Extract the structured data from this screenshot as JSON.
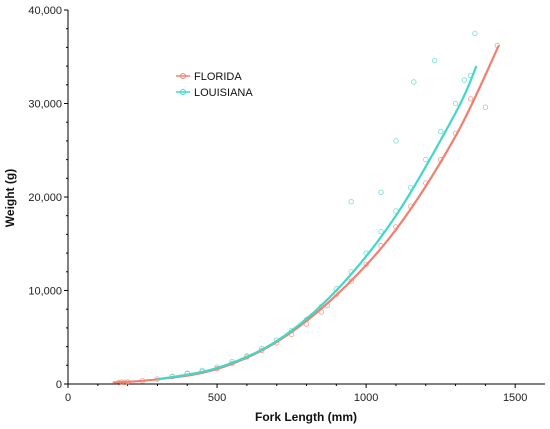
{
  "chart_data": {
    "type": "scatter",
    "title": "",
    "xlabel": "Fork Length (mm)",
    "ylabel": "Weight (g)",
    "xlim": [
      0,
      1600
    ],
    "ylim": [
      0,
      40000
    ],
    "x_ticks": [
      0,
      500,
      1000,
      1500
    ],
    "x_tick_labels": [
      "0",
      "500",
      "1000",
      "1500"
    ],
    "y_ticks": [
      0,
      10000,
      20000,
      30000,
      40000
    ],
    "y_tick_labels": [
      "0",
      "10,000",
      "20,000",
      "30,000",
      "40,000"
    ],
    "grid": false,
    "legend": {
      "position": "upper-left"
    },
    "series": [
      {
        "name": "FLORIDA",
        "color": "#f08070",
        "marker": "open-circle",
        "fit_line": {
          "x": [
            150,
            300,
            500,
            700,
            900,
            1100,
            1300,
            1445
          ],
          "y": [
            150,
            500,
            1600,
            4500,
            9500,
            16500,
            26500,
            36200
          ]
        },
        "points": [
          [
            170,
            150
          ],
          [
            180,
            200
          ],
          [
            190,
            180
          ],
          [
            200,
            220
          ],
          [
            250,
            350
          ],
          [
            300,
            520
          ],
          [
            350,
            800
          ],
          [
            400,
            1100
          ],
          [
            450,
            1350
          ],
          [
            500,
            1650
          ],
          [
            550,
            2200
          ],
          [
            600,
            2900
          ],
          [
            650,
            3600
          ],
          [
            700,
            4400
          ],
          [
            750,
            5300
          ],
          [
            800,
            6400
          ],
          [
            850,
            7700
          ],
          [
            870,
            8400
          ],
          [
            900,
            9600
          ],
          [
            950,
            11000
          ],
          [
            1000,
            12800
          ],
          [
            1050,
            14800
          ],
          [
            1100,
            16800
          ],
          [
            1150,
            19000
          ],
          [
            1200,
            21500
          ],
          [
            1250,
            24000
          ],
          [
            1300,
            26800
          ],
          [
            1350,
            30500
          ],
          [
            1400,
            29600
          ],
          [
            1440,
            36200
          ]
        ]
      },
      {
        "name": "LOUISIANA",
        "color": "#40d8c8",
        "marker": "open-circle",
        "fit_line": {
          "x": [
            300,
            500,
            700,
            900,
            1100,
            1300,
            1370
          ],
          "y": [
            500,
            1700,
            4600,
            10000,
            18000,
            29000,
            34000
          ]
        },
        "points": [
          [
            350,
            800
          ],
          [
            400,
            1150
          ],
          [
            450,
            1450
          ],
          [
            500,
            1800
          ],
          [
            550,
            2400
          ],
          [
            600,
            3000
          ],
          [
            650,
            3800
          ],
          [
            700,
            4700
          ],
          [
            750,
            5700
          ],
          [
            800,
            6900
          ],
          [
            850,
            8300
          ],
          [
            900,
            10200
          ],
          [
            950,
            12000
          ],
          [
            1000,
            14000
          ],
          [
            1050,
            16300
          ],
          [
            1100,
            18500
          ],
          [
            1150,
            21000
          ],
          [
            1200,
            24000
          ],
          [
            1250,
            27000
          ],
          [
            1300,
            30000
          ],
          [
            1330,
            32500
          ],
          [
            1350,
            33000
          ],
          [
            1365,
            37500
          ],
          [
            1160,
            32300
          ],
          [
            1230,
            34600
          ],
          [
            1100,
            26000
          ],
          [
            950,
            19500
          ],
          [
            1050,
            20500
          ]
        ]
      }
    ]
  }
}
